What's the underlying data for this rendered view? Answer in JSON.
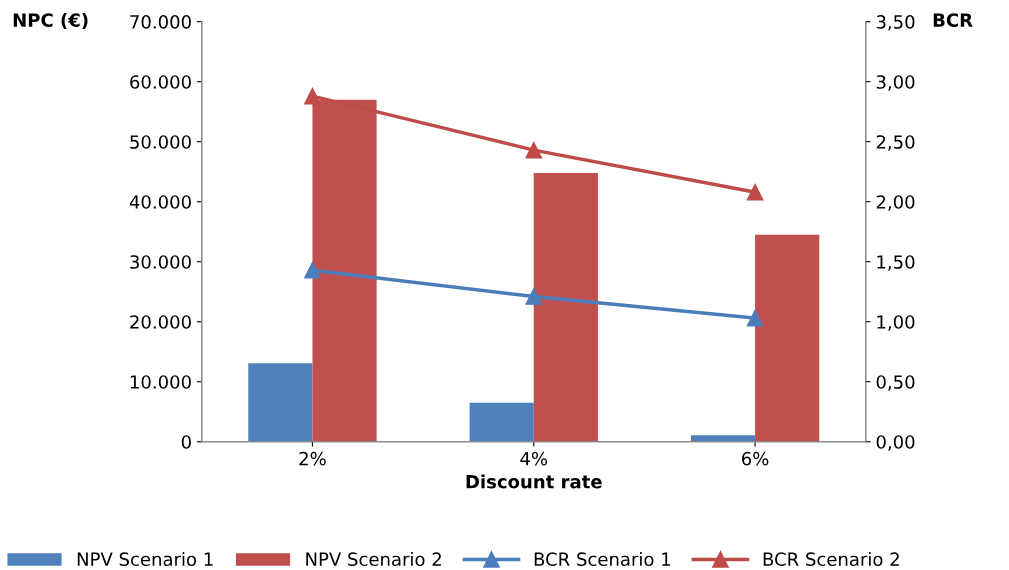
{
  "chart_data": {
    "type": "bar",
    "xlabel": "Discount rate",
    "ylabel": "NPC (€)",
    "y2label": "BCR",
    "categories": [
      "2%",
      "4%",
      "6%"
    ],
    "series": [
      {
        "name": "NPV Scenario 1",
        "color": "#4f81bd",
        "values": [
          13100,
          6500,
          1100
        ]
      },
      {
        "name": "NPV Scenario 2",
        "color": "#c0504d",
        "values": [
          57000,
          44800,
          34500
        ]
      },
      {
        "name": "BCR Scenario 1",
        "type": "line",
        "axis": "y2",
        "marker": "triangle",
        "color": "#4a7ebb",
        "values": [
          1.43,
          1.21,
          1.03
        ]
      },
      {
        "name": "BCR Scenario 2",
        "type": "line",
        "axis": "y2",
        "marker": "triangle",
        "color": "#be4b48",
        "values": [
          2.88,
          2.43,
          2.08
        ]
      }
    ],
    "ylim": [
      0,
      70000
    ],
    "yticks": [
      {
        "value": 0,
        "label": "0"
      },
      {
        "value": 10000,
        "label": "10.000"
      },
      {
        "value": 20000,
        "label": "20.000"
      },
      {
        "value": 30000,
        "label": "30.000"
      },
      {
        "value": 40000,
        "label": "40.000"
      },
      {
        "value": 50000,
        "label": "50.000"
      },
      {
        "value": 60000,
        "label": "60.000"
      },
      {
        "value": 70000,
        "label": "70.000"
      }
    ],
    "y2lim": [
      0,
      3.5
    ],
    "y2ticks": [
      {
        "value": 0,
        "label": "0,00"
      },
      {
        "value": 0.5,
        "label": "0,50"
      },
      {
        "value": 1,
        "label": "1,00"
      },
      {
        "value": 1.5,
        "label": "1,50"
      },
      {
        "value": 2,
        "label": "2,00"
      },
      {
        "value": 2.5,
        "label": "2,50"
      },
      {
        "value": 3,
        "label": "3,00"
      },
      {
        "value": 3.5,
        "label": "3,50"
      }
    ],
    "grid": false,
    "legend": "bottom"
  }
}
